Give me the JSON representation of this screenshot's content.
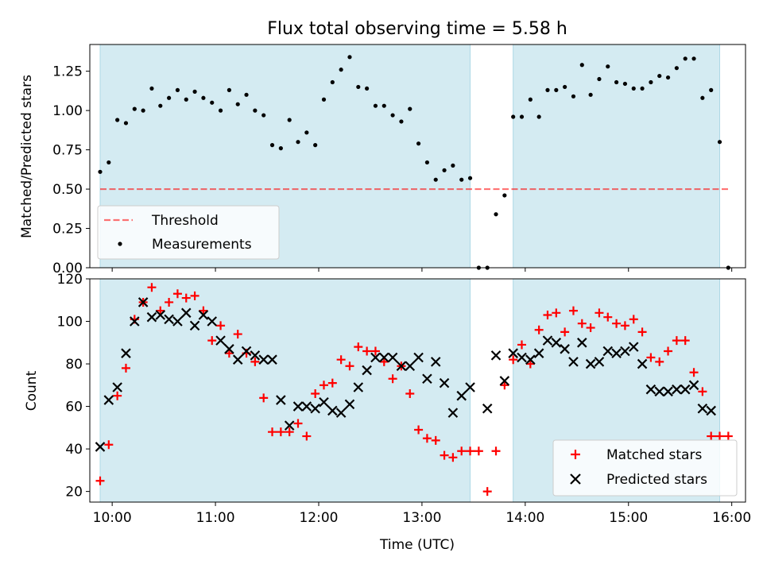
{
  "title": "Flux total observing time = 5.58 h",
  "colors": {
    "band": "#add8e6",
    "threshold": "#ff0000",
    "measurement": "#000000",
    "matched": "#ff0000",
    "predicted": "#000000"
  },
  "chart_data": [
    {
      "type": "scatter",
      "ylabel": "Matched/Predicted stars",
      "ylim": [
        0,
        1.42
      ],
      "xlim": [
        "09:47",
        "16:08"
      ],
      "xticks": [
        "10:00",
        "11:00",
        "12:00",
        "13:00",
        "14:00",
        "15:00",
        "16:00"
      ],
      "yticks": [
        "0.00",
        "0.25",
        "0.50",
        "0.75",
        "1.00",
        "1.25"
      ],
      "yticks_values": [
        0,
        0.25,
        0.5,
        0.75,
        1.0,
        1.25
      ],
      "shaded_intervals": [
        [
          "09:53",
          "13:28"
        ],
        [
          "13:53",
          "15:53"
        ]
      ],
      "threshold": {
        "name": "Threshold",
        "value": 0.5,
        "x_range": [
          "09:53",
          "15:58"
        ],
        "style": "dashed"
      },
      "legend_location": "lower left",
      "series": [
        {
          "name": "Measurements",
          "marker": "dot",
          "x": [
            "09:53",
            "09:58",
            "10:03",
            "10:08",
            "10:13",
            "10:18",
            "10:23",
            "10:28",
            "10:33",
            "10:38",
            "10:43",
            "10:48",
            "10:53",
            "10:58",
            "11:03",
            "11:08",
            "11:13",
            "11:18",
            "11:23",
            "11:28",
            "11:33",
            "11:38",
            "11:43",
            "11:48",
            "11:53",
            "11:58",
            "12:03",
            "12:08",
            "12:13",
            "12:18",
            "12:23",
            "12:28",
            "12:33",
            "12:38",
            "12:43",
            "12:48",
            "12:53",
            "12:58",
            "13:03",
            "13:08",
            "13:13",
            "13:18",
            "13:23",
            "13:28",
            "13:33",
            "13:38",
            "13:43",
            "13:48",
            "13:53",
            "13:58",
            "14:03",
            "14:08",
            "14:13",
            "14:18",
            "14:23",
            "14:28",
            "14:33",
            "14:38",
            "14:43",
            "14:48",
            "14:53",
            "14:58",
            "15:03",
            "15:08",
            "15:13",
            "15:18",
            "15:23",
            "15:28",
            "15:33",
            "15:38",
            "15:43",
            "15:48",
            "15:53",
            "15:58"
          ],
          "y": [
            0.61,
            0.67,
            0.94,
            0.92,
            1.01,
            1.0,
            1.14,
            1.03,
            1.08,
            1.13,
            1.07,
            1.12,
            1.08,
            1.05,
            1.0,
            1.13,
            1.04,
            1.1,
            1.0,
            0.97,
            0.78,
            0.76,
            0.94,
            0.8,
            0.86,
            0.78,
            1.07,
            1.18,
            1.26,
            1.34,
            1.15,
            1.14,
            1.03,
            1.03,
            0.97,
            0.93,
            1.01,
            0.79,
            0.67,
            0.56,
            0.62,
            0.65,
            0.56,
            0.57,
            0.0,
            0.0,
            0.34,
            0.46,
            0.96,
            0.96,
            1.07,
            0.96,
            1.13,
            1.13,
            1.15,
            1.09,
            1.29,
            1.1,
            1.2,
            1.28,
            1.18,
            1.17,
            1.14,
            1.14,
            1.18,
            1.22,
            1.21,
            1.27,
            1.33,
            1.33,
            1.08,
            1.13,
            0.8,
            0.0
          ]
        }
      ]
    },
    {
      "type": "scatter",
      "xlabel": "Time (UTC)",
      "ylabel": "Count",
      "ylim": [
        15,
        120
      ],
      "xlim": [
        "09:47",
        "16:08"
      ],
      "xticks": [
        "10:00",
        "11:00",
        "12:00",
        "13:00",
        "14:00",
        "15:00",
        "16:00"
      ],
      "yticks": [
        "20",
        "40",
        "60",
        "80",
        "100",
        "120"
      ],
      "yticks_values": [
        20,
        40,
        60,
        80,
        100,
        120
      ],
      "shaded_intervals": [
        [
          "09:53",
          "13:28"
        ],
        [
          "13:53",
          "15:53"
        ]
      ],
      "legend_location": "lower right",
      "x": [
        "09:53",
        "09:58",
        "10:03",
        "10:08",
        "10:13",
        "10:18",
        "10:23",
        "10:28",
        "10:33",
        "10:38",
        "10:43",
        "10:48",
        "10:53",
        "10:58",
        "11:03",
        "11:08",
        "11:13",
        "11:18",
        "11:23",
        "11:28",
        "11:33",
        "11:38",
        "11:43",
        "11:48",
        "11:53",
        "11:58",
        "12:03",
        "12:08",
        "12:13",
        "12:18",
        "12:23",
        "12:28",
        "12:33",
        "12:38",
        "12:43",
        "12:48",
        "12:53",
        "12:58",
        "13:03",
        "13:08",
        "13:13",
        "13:18",
        "13:23",
        "13:28",
        "13:33",
        "13:38",
        "13:43",
        "13:48",
        "13:53",
        "13:58",
        "14:03",
        "14:08",
        "14:13",
        "14:18",
        "14:23",
        "14:28",
        "14:33",
        "14:38",
        "14:43",
        "14:48",
        "14:53",
        "14:58",
        "15:03",
        "15:08",
        "15:13",
        "15:18",
        "15:23",
        "15:28",
        "15:33",
        "15:38",
        "15:43",
        "15:48",
        "15:53",
        "15:58"
      ],
      "series": [
        {
          "name": "Matched stars",
          "marker": "plus",
          "y": [
            25,
            42,
            65,
            78,
            101,
            109,
            116,
            105,
            109,
            113,
            111,
            112,
            105,
            91,
            98,
            85,
            94,
            85,
            81,
            64,
            48,
            48,
            48,
            52,
            46,
            66,
            70,
            71,
            82,
            79,
            88,
            86,
            86,
            81,
            73,
            79,
            66,
            49,
            45,
            44,
            37,
            36,
            39,
            39,
            39,
            20,
            39,
            70,
            82,
            89,
            80,
            96,
            103,
            104,
            95,
            105,
            99,
            97,
            104,
            102,
            99,
            98,
            101,
            95,
            83,
            81,
            86,
            91,
            91,
            76,
            67,
            46,
            46,
            46
          ]
        },
        {
          "name": "Predicted stars",
          "marker": "x",
          "y": [
            41,
            63,
            69,
            85,
            100,
            109,
            102,
            103,
            101,
            100,
            104,
            98,
            103,
            100,
            91,
            87,
            82,
            86,
            84,
            82,
            82,
            63,
            51,
            60,
            60,
            59,
            62,
            58,
            57,
            61,
            69,
            77,
            83,
            83,
            83,
            79,
            79,
            83,
            73,
            81,
            71,
            57,
            65,
            69,
            null,
            59,
            84,
            72,
            85,
            83,
            82,
            85,
            91,
            90,
            87,
            81,
            90,
            80,
            81,
            86,
            85,
            86,
            88,
            80,
            68,
            67,
            67,
            68,
            68,
            70,
            59,
            58,
            null,
            null
          ]
        }
      ]
    }
  ]
}
